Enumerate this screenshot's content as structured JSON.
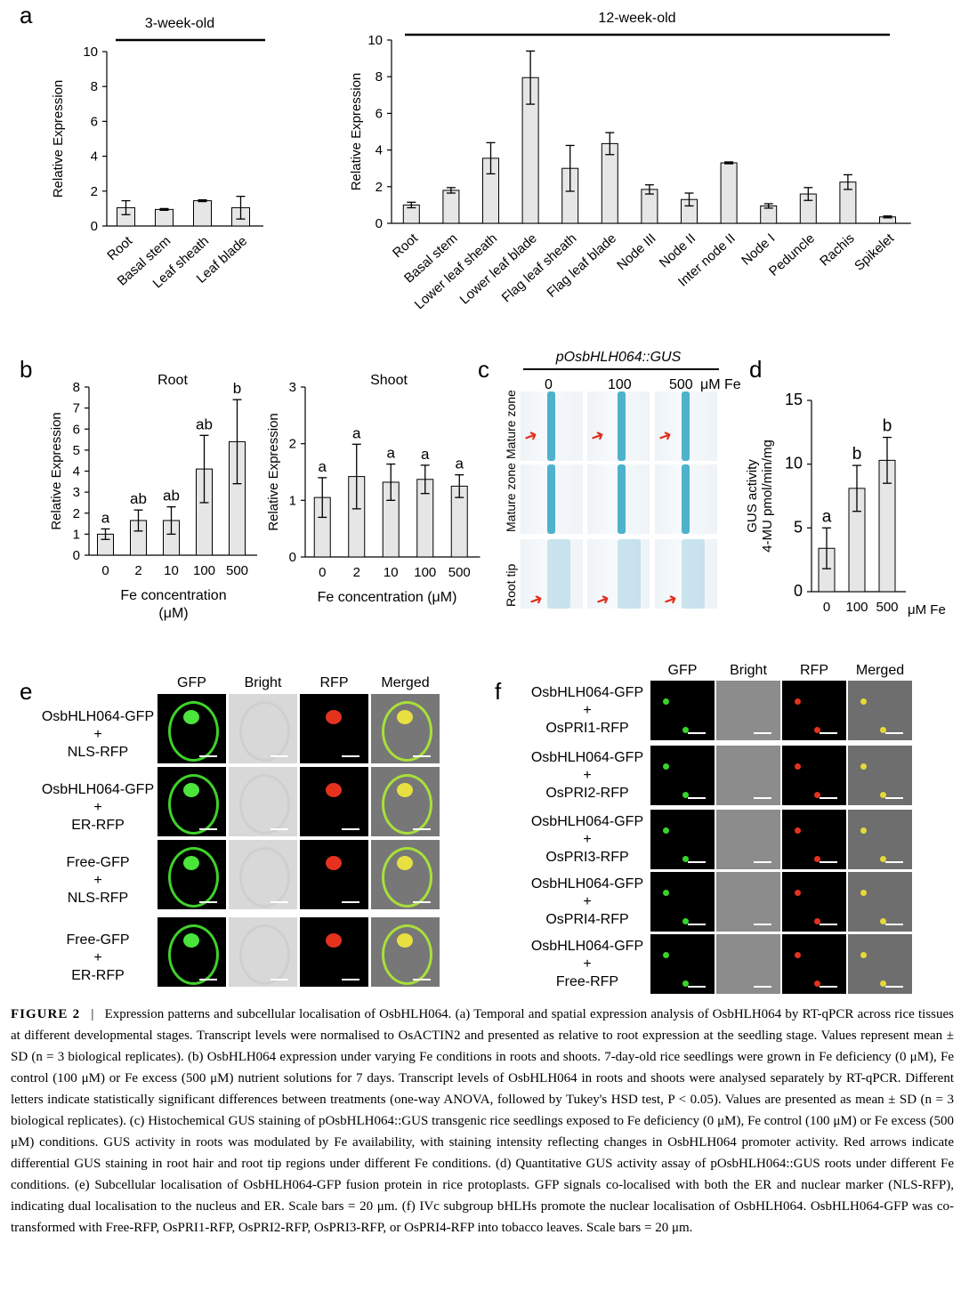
{
  "panels": {
    "a": "a",
    "b": "b",
    "c": "c",
    "d": "d",
    "e": "e",
    "f": "f"
  },
  "chart_data": [
    {
      "id": "a-left",
      "type": "bar",
      "title": "3-week-old",
      "ylabel": "Relative Expression",
      "categories": [
        "Root",
        "Basal stem",
        "Leaf sheath",
        "Leaf blade"
      ],
      "values": [
        1.05,
        0.95,
        1.45,
        1.05
      ],
      "errors": [
        0.4,
        0.05,
        0.05,
        0.65
      ],
      "ylim": [
        0,
        10
      ],
      "yticks": [
        0,
        2,
        4,
        6,
        8,
        10
      ]
    },
    {
      "id": "a-right",
      "type": "bar",
      "title": "12-week-old",
      "ylabel": "Relative Expression",
      "categories": [
        "Root",
        "Basal stem",
        "Lower leaf sheath",
        "Lower leaf blade",
        "Flag leaf sheath",
        "Flag leaf blade",
        "Node III",
        "Node II",
        "Inter node II",
        "Node I",
        "Peduncle",
        "Rachis",
        "Spikelet"
      ],
      "values": [
        1.0,
        1.8,
        3.55,
        7.95,
        3.0,
        4.35,
        1.85,
        1.3,
        3.3,
        0.95,
        1.6,
        2.25,
        0.35
      ],
      "errors": [
        0.15,
        0.15,
        0.85,
        1.45,
        1.25,
        0.6,
        0.25,
        0.35,
        0.05,
        0.12,
        0.35,
        0.4,
        0.05
      ],
      "ylim": [
        0,
        10
      ],
      "yticks": [
        0,
        2,
        4,
        6,
        8,
        10
      ]
    },
    {
      "id": "b-root",
      "type": "bar",
      "title": "Root",
      "ylabel": "Relative Expression",
      "xlabel": "Fe concentration (μM)",
      "categories": [
        "0",
        "2",
        "10",
        "100",
        "500"
      ],
      "values": [
        1.0,
        1.65,
        1.65,
        4.1,
        5.4
      ],
      "errors": [
        0.25,
        0.5,
        0.65,
        1.6,
        2.0
      ],
      "letters": [
        "a",
        "ab",
        "ab",
        "ab",
        "b"
      ],
      "ylim": [
        0,
        8
      ],
      "yticks": [
        0,
        1,
        2,
        3,
        4,
        5,
        6,
        7,
        8
      ]
    },
    {
      "id": "b-shoot",
      "type": "bar",
      "title": "Shoot",
      "ylabel": "Relative Expression",
      "xlabel": "Fe concentration (μM)",
      "categories": [
        "0",
        "2",
        "10",
        "100",
        "500"
      ],
      "values": [
        1.05,
        1.42,
        1.32,
        1.37,
        1.25
      ],
      "errors": [
        0.35,
        0.57,
        0.32,
        0.25,
        0.2
      ],
      "letters": [
        "a",
        "a",
        "a",
        "a",
        "a"
      ],
      "ylim": [
        0,
        3
      ],
      "yticks": [
        0,
        1,
        2,
        3
      ]
    },
    {
      "id": "d",
      "type": "bar",
      "ylabel": "GUS activity",
      "ylabel2": "4-MU pmol/min/mg",
      "xunit": "μM Fe",
      "categories": [
        "0",
        "100",
        "500"
      ],
      "values": [
        3.4,
        8.1,
        10.3
      ],
      "errors": [
        1.6,
        1.8,
        1.8
      ],
      "letters": [
        "a",
        "b",
        "b"
      ],
      "ylim": [
        0,
        15
      ],
      "yticks": [
        0,
        5,
        10,
        15
      ]
    }
  ],
  "panel_c": {
    "title": "pOsbHLH064::GUS",
    "columns": [
      "0",
      "100",
      "500"
    ],
    "unit": "μM Fe",
    "rows": [
      "Mature zone",
      "Mature zone",
      "Root tip"
    ]
  },
  "panel_e": {
    "columns": [
      "GFP",
      "Bright",
      "RFP",
      "Merged"
    ],
    "rows": [
      {
        "l1": "OsbHLH064-GFP",
        "plus": "+",
        "l2": "NLS-RFP"
      },
      {
        "l1": "OsbHLH064-GFP",
        "plus": "+",
        "l2": "ER-RFP"
      },
      {
        "l1": "Free-GFP",
        "plus": "+",
        "l2": "NLS-RFP"
      },
      {
        "l1": "Free-GFP",
        "plus": "+",
        "l2": "ER-RFP"
      }
    ]
  },
  "panel_f": {
    "columns": [
      "GFP",
      "Bright",
      "RFP",
      "Merged"
    ],
    "rows": [
      {
        "l1": "OsbHLH064-GFP",
        "plus": "+",
        "l2": "OsPRI1-RFP"
      },
      {
        "l1": "OsbHLH064-GFP",
        "plus": "+",
        "l2": "OsPRI2-RFP"
      },
      {
        "l1": "OsbHLH064-GFP",
        "plus": "+",
        "l2": "OsPRI3-RFP"
      },
      {
        "l1": "OsbHLH064-GFP",
        "plus": "+",
        "l2": "OsPRI4-RFP"
      },
      {
        "l1": "OsbHLH064-GFP",
        "plus": "+",
        "l2": "Free-RFP"
      }
    ]
  },
  "caption": {
    "figure_label": "FIGURE 2",
    "separator": "|",
    "text": "Expression patterns and subcellular localisation of OsbHLH064. (a) Temporal and spatial expression analysis of OsbHLH064 by RT-qPCR across rice tissues at different developmental stages. Transcript levels were normalised to OsACTIN2 and presented as relative to root expression at the seedling stage. Values represent mean ± SD (n = 3 biological replicates). (b) OsbHLH064 expression under varying Fe conditions in roots and shoots. 7-day-old rice seedlings were grown in Fe deficiency (0 μM), Fe control (100 μM) or Fe excess (500 μM) nutrient solutions for 7 days. Transcript levels of OsbHLH064 in roots and shoots were analysed separately by RT-qPCR. Different letters indicate statistically significant differences between treatments (one-way ANOVA, followed by Tukey's HSD test, P < 0.05). Values are presented as mean ± SD (n = 3 biological replicates). (c) Histochemical GUS staining of pOsbHLH064::GUS transgenic rice seedlings exposed to Fe deficiency (0 μM), Fe control (100 μM) or Fe excess (500 μM) conditions. GUS activity in roots was modulated by Fe availability, with staining intensity reflecting changes in OsbHLH064 promoter activity. Red arrows indicate differential GUS staining in root hair and root tip regions under different Fe conditions. (d) Quantitative GUS activity assay of pOsbHLH064::GUS roots under different Fe conditions. (e) Subcellular localisation of OsbHLH064-GFP fusion protein in rice protoplasts. GFP signals co-localised with both the ER and nuclear marker (NLS-RFP), indicating dual localisation to the nucleus and ER. Scale bars = 20 μm. (f) IVc subgroup bHLHs promote the nuclear localisation of OsbHLH064. OsbHLH064-GFP was co-transformed with Free-RFP, OsPRI1-RFP, OsPRI2-RFP, OsPRI3-RFP, or OsPRI4-RFP into tobacco leaves. Scale bars = 20 μm."
  }
}
